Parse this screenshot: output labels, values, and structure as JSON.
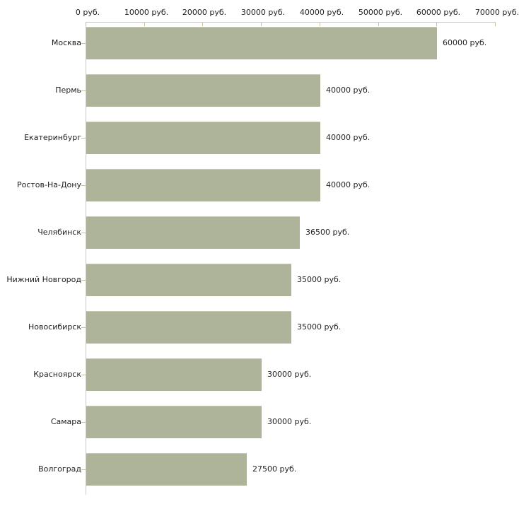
{
  "chart_data": {
    "type": "bar",
    "orientation": "horizontal",
    "title": "",
    "xlabel": "",
    "ylabel": "",
    "unit": "руб.",
    "categories": [
      "Москва",
      "Пермь",
      "Екатеринбург",
      "Ростов-На-Дону",
      "Челябинск",
      "Нижний Новгород",
      "Новосибирск",
      "Красноярск",
      "Самара",
      "Волгоград"
    ],
    "values": [
      60000,
      40000,
      40000,
      40000,
      36500,
      35000,
      35000,
      30000,
      30000,
      27500
    ],
    "value_labels": [
      "60000 руб.",
      "40000 руб.",
      "40000 руб.",
      "40000 руб.",
      "36500 руб.",
      "35000 руб.",
      "35000 руб.",
      "30000 руб.",
      "30000 руб.",
      "27500 руб."
    ],
    "x_axis": {
      "position": "top",
      "min": 0,
      "max": 70000,
      "ticks": [
        0,
        10000,
        20000,
        30000,
        40000,
        50000,
        60000,
        70000
      ],
      "tick_labels": [
        "0 руб.",
        "10000 руб.",
        "20000 руб.",
        "30000 руб.",
        "40000 руб.",
        "50000 руб.",
        "60000 руб.",
        "70000 руб."
      ]
    },
    "grid": false,
    "legend": false,
    "colors": {
      "bar": "#aeb499",
      "bar_edge": "#c6cab5",
      "axis_line": "#c9c9c9",
      "tick": "#c2c29e",
      "text": "#1f1f1f",
      "background": "#ffffff"
    }
  }
}
